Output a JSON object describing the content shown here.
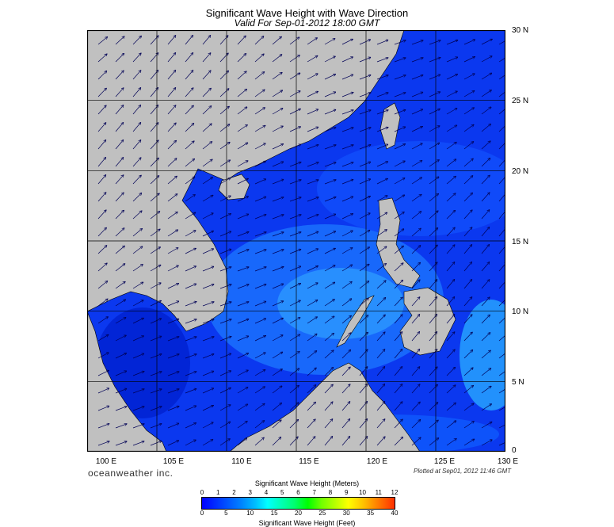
{
  "title": "Significant Wave Height with Wave Direction",
  "subtitle": "Valid For Sep-01-2012 18:00 GMT",
  "brand": "oceanweather inc.",
  "plotted": "Plotted at Sep01, 2012 11:46 GMT",
  "map": {
    "lon_range": [
      100,
      130
    ],
    "lat_range": [
      0,
      30
    ],
    "lon_labels": [
      "100 E",
      "105 E",
      "110 E",
      "115 E",
      "120 E",
      "125 E",
      "130 E"
    ],
    "lat_labels": [
      "30 N",
      "25 N",
      "20 N",
      "15 N",
      "10 N",
      "5 N",
      "0"
    ],
    "land_color": "#c0c0c0",
    "water_color": "#0a3cf0",
    "arrow_color": "#000055"
  },
  "legend": {
    "meters_title": "Significant Wave Height (Meters)",
    "feet_title": "Significant Wave Height (Feet)",
    "meters_ticks": [
      "0",
      "1",
      "2",
      "3",
      "4",
      "5",
      "6",
      "7",
      "8",
      "9",
      "10",
      "11",
      "12"
    ],
    "feet_ticks": [
      "0",
      "5",
      "10",
      "15",
      "20",
      "25",
      "30",
      "35",
      "40"
    ]
  }
}
